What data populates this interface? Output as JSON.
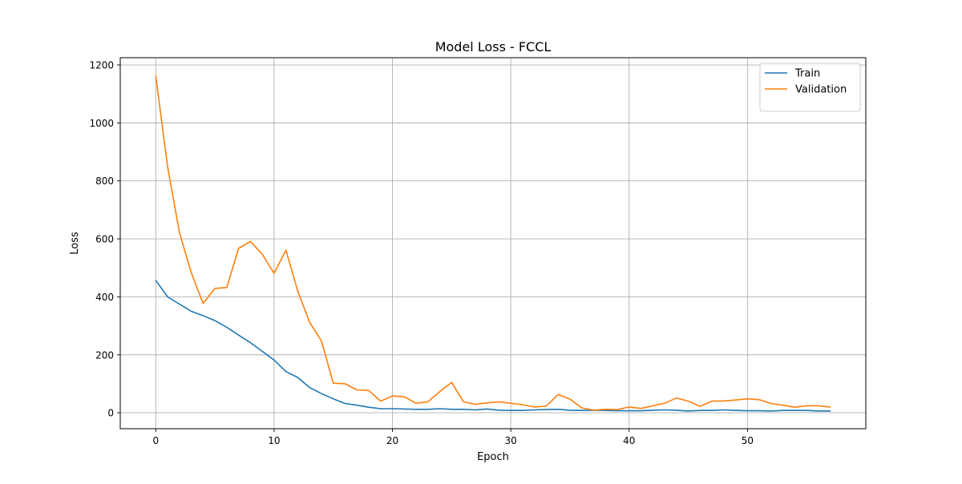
{
  "chart_data": {
    "type": "line",
    "title": "Model Loss - FCCL",
    "xlabel": "Epoch",
    "ylabel": "Loss",
    "xlim": [
      -3,
      60
    ],
    "ylim": [
      -55,
      1225
    ],
    "xticks": [
      0,
      10,
      20,
      30,
      40,
      50
    ],
    "yticks": [
      0,
      200,
      400,
      600,
      800,
      1000,
      1200
    ],
    "grid": true,
    "legend_position": "top-right",
    "x": [
      0,
      1,
      2,
      3,
      4,
      5,
      6,
      7,
      8,
      9,
      10,
      11,
      12,
      13,
      14,
      15,
      16,
      17,
      18,
      19,
      20,
      21,
      22,
      23,
      24,
      25,
      26,
      27,
      28,
      29,
      30,
      31,
      32,
      33,
      34,
      35,
      36,
      37,
      38,
      39,
      40,
      41,
      42,
      43,
      44,
      45,
      46,
      47,
      48,
      49,
      50,
      51,
      52,
      53,
      54,
      55,
      56,
      57
    ],
    "series": [
      {
        "name": "Train",
        "color": "#1f77b4",
        "values": [
          457,
          400,
          375,
          350,
          335,
          318,
          295,
          268,
          242,
          212,
          182,
          142,
          122,
          87,
          66,
          48,
          32,
          26,
          19,
          14,
          14,
          13,
          12,
          12,
          14,
          12,
          12,
          10,
          13,
          9,
          8,
          8,
          10,
          11,
          12,
          9,
          8,
          9,
          8,
          7,
          7,
          7,
          9,
          10,
          9,
          6,
          8,
          8,
          10,
          8,
          7,
          7,
          6,
          8,
          8,
          8,
          6,
          6
        ]
      },
      {
        "name": "Validation",
        "color": "#ff7f0e",
        "values": [
          1162,
          850,
          622,
          483,
          377,
          429,
          432,
          567,
          591,
          547,
          481,
          561,
          420,
          312,
          248,
          102,
          100,
          79,
          77,
          40,
          58,
          55,
          33,
          38,
          73,
          105,
          38,
          29,
          34,
          38,
          33,
          28,
          20,
          23,
          63,
          47,
          17,
          9,
          12,
          11,
          20,
          15,
          24,
          33,
          51,
          40,
          22,
          40,
          41,
          44,
          48,
          45,
          32,
          26,
          19,
          24,
          24,
          20
        ]
      }
    ]
  }
}
